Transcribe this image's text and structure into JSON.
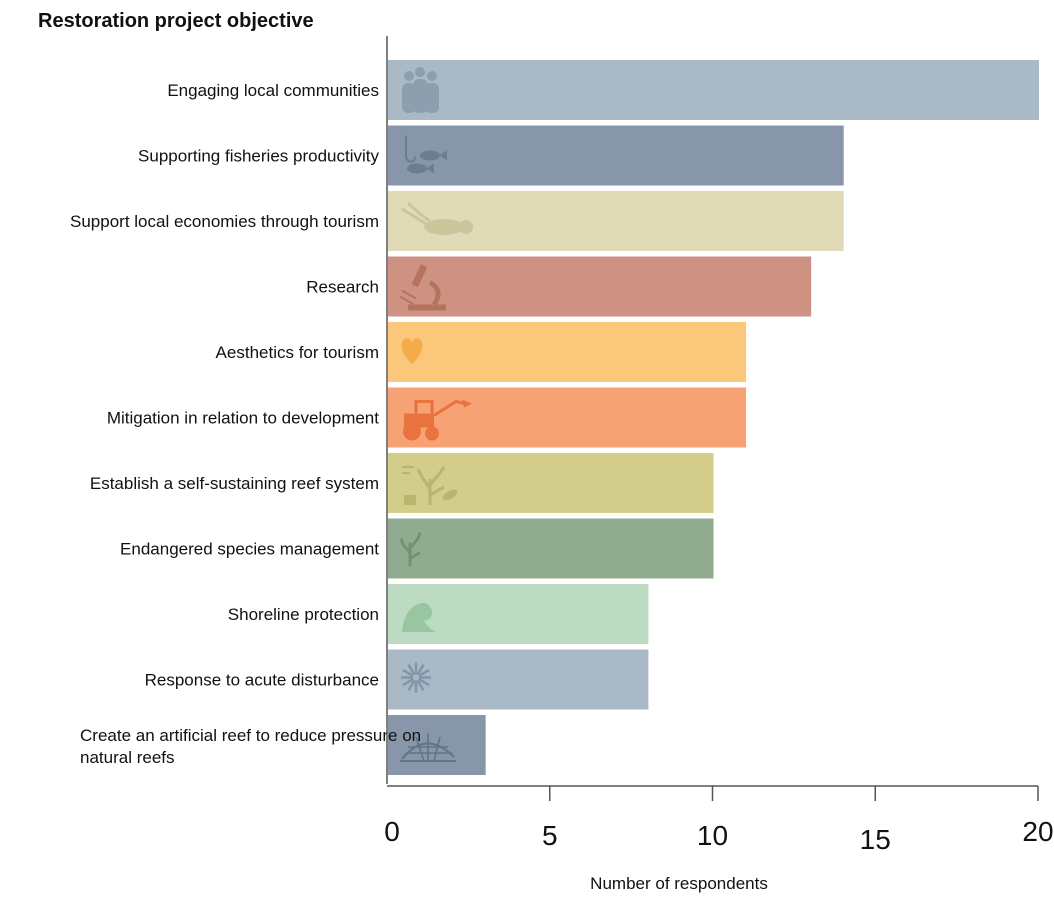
{
  "chart_data": {
    "type": "bar",
    "orientation": "horizontal",
    "title": "",
    "ylabel": "Restoration project objective",
    "xlabel": "Number of respondents",
    "xlim": [
      0,
      20
    ],
    "x_ticks": [
      "0",
      "5",
      "10",
      "15",
      "20"
    ],
    "grid": false,
    "categories": [
      "Engaging local communities",
      "Supporting fisheries productivity",
      "Support local economies through tourism",
      "Research",
      "Aesthetics for tourism",
      "Mitigation in relation to development",
      "Establish a self-sustaining reef system",
      "Endangered species management",
      "Shoreline protection",
      "Response to acute disturbance",
      "Create an artificial reef to reduce pressure on natural reefs"
    ],
    "values": [
      20,
      14,
      14,
      13,
      11,
      11,
      10,
      10,
      8,
      8,
      3
    ],
    "colors": [
      "#a9b9c5",
      "#8796a8",
      "#e0dbb6",
      "#cd9282",
      "#fbc77b",
      "#f6a274",
      "#d2cd8a",
      "#91ab91",
      "#bddbc2",
      "#a9b9c5",
      "#8796a8"
    ],
    "icons": [
      "people-icon",
      "fishing-icon",
      "diver-icon",
      "microscope-icon",
      "heart-icon",
      "bulldozer-icon",
      "coral-garden-icon",
      "coral-icon",
      "wave-icon",
      "starburst-icon",
      "reef-structure-icon"
    ],
    "icon_colors": [
      "#8a9cac",
      "#6a7b90",
      "#c9c39a",
      "#b56f5c",
      "#f4aa47",
      "#e86f3a",
      "#b8b26a",
      "#6f8f6f",
      "#93c39d",
      "#7e93a6",
      "#5e6f86"
    ]
  }
}
